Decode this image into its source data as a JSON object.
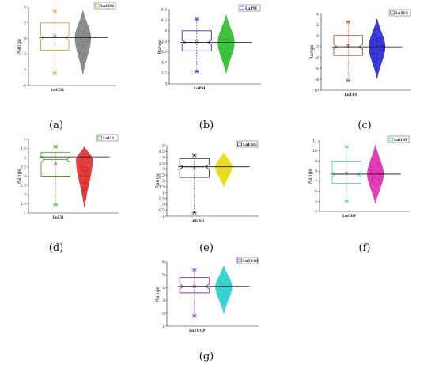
{
  "figure": {
    "captions": [
      "(a)",
      "(b)",
      "(c)",
      "(d)",
      "(e)",
      "(f)",
      "(g)"
    ]
  },
  "chart_data": [
    {
      "type": "box-violin",
      "panel": "a",
      "title": "",
      "xlabel": "LnCO2",
      "ylabel": "Range",
      "legend": "LnCO2",
      "legend_position": "top-right",
      "color": "#d4a03a",
      "violin_color": "#7a7a7a",
      "ylim": [
        -6,
        4
      ],
      "yticks": [
        -6,
        -4,
        -2,
        0,
        2,
        4
      ],
      "stats": {
        "min": -4.4,
        "q1": -1.5,
        "median": 0.1,
        "q3": 2.0,
        "max": 3.5,
        "mean": 0.3
      },
      "violin": {
        "min": -4.6,
        "max": 3.6
      },
      "mean_line": 0.1
    },
    {
      "type": "box-violin",
      "panel": "b",
      "title": "",
      "xlabel": "LnPM",
      "ylabel": "Range",
      "legend": "LnPM",
      "legend_position": "top-right",
      "color": "#3333cc",
      "violin_color": "#22bb22",
      "ylim": [
        3.0,
        4.4
      ],
      "yticks": [
        3.0,
        3.2,
        3.4,
        3.6,
        3.8,
        4.0,
        4.2,
        4.4
      ],
      "stats": {
        "min": 3.23,
        "q1": 3.62,
        "median": 3.78,
        "q3": 4.0,
        "max": 4.22,
        "mean": 3.79
      },
      "violin": {
        "min": 3.2,
        "max": 4.3
      },
      "mean_line": 3.78
    },
    {
      "type": "box-violin",
      "panel": "c",
      "title": "",
      "xlabel": "LnTFS",
      "ylabel": "Range",
      "legend": "LnTFS",
      "legend_position": "top-right",
      "color": "#b05530",
      "violin_color": "#1d1dcc",
      "ylim": [
        -10,
        4
      ],
      "yticks": [
        -10,
        -8,
        -6,
        -4,
        -2,
        0,
        2,
        4
      ],
      "stats": {
        "min": -8.2,
        "q1": -3.6,
        "median": -2.0,
        "q3": 0.1,
        "max": 2.6,
        "mean": -1.8
      },
      "violin": {
        "min": -7.8,
        "max": 3.2
      },
      "mean_line": -2.0
    },
    {
      "type": "box-violin",
      "panel": "d",
      "title": "",
      "xlabel": "LnUR",
      "ylabel": "Range",
      "legend": "LnUR",
      "legend_position": "top-right",
      "color": "#44aa22",
      "violin_color": "#dd2222",
      "ylim": [
        1.0,
        5.0
      ],
      "yticks": [
        1.0,
        1.5,
        2.0,
        2.5,
        3.0,
        3.5,
        4.0,
        4.5,
        5.0
      ],
      "stats": {
        "min": 1.45,
        "q1": 3.0,
        "median": 3.9,
        "q3": 4.3,
        "max": 4.6,
        "mean": 3.7
      },
      "violin": {
        "min": 1.3,
        "max": 4.6
      },
      "mean_line": 4.05
    },
    {
      "type": "box-violin",
      "panel": "e",
      "title": "",
      "xlabel": "LnENG",
      "ylabel": "Range",
      "legend": "LnENG",
      "legend_position": "top-right",
      "color": "#333333",
      "violin_color": "#e6d800",
      "ylim": [
        -1.0,
        5.0
      ],
      "yticks": [
        -1.0,
        -0.5,
        0.0,
        0.5,
        1.0,
        1.5,
        2.0,
        2.5,
        3.0,
        3.5,
        4.0,
        4.5,
        5.0
      ],
      "stats": {
        "min": -0.7,
        "q1": 2.3,
        "median": 3.2,
        "q3": 3.9,
        "max": 4.2,
        "mean": 3.1
      },
      "violin": {
        "min": 1.5,
        "max": 4.4
      },
      "mean_line": 3.2
    },
    {
      "type": "box-violin",
      "panel": "f",
      "title": "",
      "xlabel": "LnGDP",
      "ylabel": "Range",
      "legend": "LnGDP",
      "legend_position": "top-right",
      "color": "#55ccdd",
      "violin_color": "#dd22aa",
      "ylim": [
        4,
        11
      ],
      "yticks": [
        4,
        5,
        6,
        7,
        8,
        9,
        10,
        11
      ],
      "stats": {
        "min": 5.0,
        "q1": 6.8,
        "median": 7.7,
        "q3": 9.0,
        "max": 10.4,
        "mean": 7.8
      },
      "violin": {
        "min": 4.8,
        "max": 10.6
      },
      "mean_line": 7.7
    },
    {
      "type": "box-violin",
      "panel": "g",
      "title": "",
      "xlabel": "LnTCGP",
      "ylabel": "Range",
      "legend": "LnTCGP",
      "legend_position": "top-right",
      "color": "#9933cc",
      "violin_color": "#22cccc",
      "ylim": [
        1,
        6
      ],
      "yticks": [
        1,
        2,
        3,
        4,
        5,
        6
      ],
      "stats": {
        "min": 1.8,
        "q1": 3.6,
        "median": 4.1,
        "q3": 4.8,
        "max": 5.4,
        "mean": 4.1
      },
      "violin": {
        "min": 2.0,
        "max": 5.7
      },
      "mean_line": 4.1
    }
  ]
}
